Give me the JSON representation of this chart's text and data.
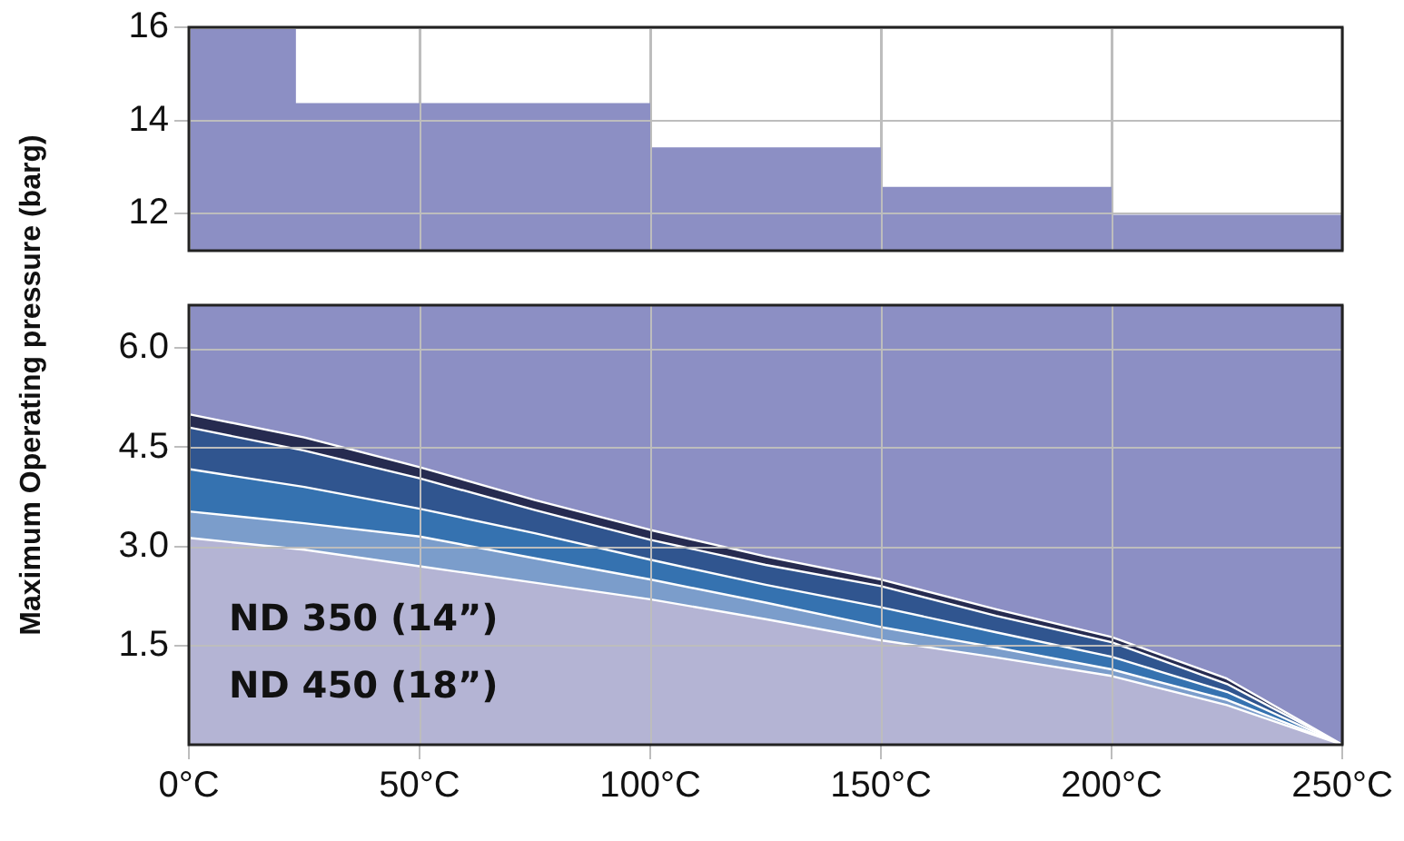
{
  "chart_data": [
    {
      "type": "area",
      "x": [
        0,
        23,
        23,
        100,
        100,
        150,
        150,
        200,
        200,
        250
      ],
      "series": [
        {
          "color": "#8c8fc4",
          "values": [
            16,
            16,
            14.35,
            14.35,
            13.4,
            13.4,
            12.55,
            12.55,
            11.95,
            11.95
          ]
        }
      ],
      "xlim": [
        0,
        250
      ],
      "xticks": [
        0,
        50,
        100,
        150,
        200,
        250
      ],
      "ylim": [
        11.2,
        16
      ],
      "yticks": [
        12,
        14,
        16
      ],
      "grid": true,
      "tick_labels": "y"
    },
    {
      "type": "area",
      "x": [
        0,
        25,
        50,
        75,
        100,
        125,
        150,
        175,
        200,
        225,
        250
      ],
      "series": [
        {
          "color": "#262b50",
          "values": [
            5.0,
            4.65,
            4.2,
            3.7,
            3.25,
            2.85,
            2.5,
            2.05,
            1.63,
            1.0,
            0
          ]
        },
        {
          "color": "#30558f",
          "values": [
            4.8,
            4.45,
            4.03,
            3.55,
            3.1,
            2.72,
            2.4,
            1.95,
            1.55,
            0.92,
            0
          ]
        },
        {
          "color": "#3572b0",
          "values": [
            4.17,
            3.9,
            3.57,
            3.2,
            2.8,
            2.42,
            2.08,
            1.7,
            1.33,
            0.8,
            0
          ]
        },
        {
          "color": "#7b9dcb",
          "values": [
            3.53,
            3.35,
            3.15,
            2.82,
            2.5,
            2.15,
            1.78,
            1.47,
            1.14,
            0.68,
            0
          ]
        },
        {
          "color": "#b4b4d4",
          "values": [
            3.13,
            2.95,
            2.7,
            2.45,
            2.2,
            1.9,
            1.58,
            1.32,
            1.04,
            0.6,
            0
          ]
        }
      ],
      "xlim": [
        0,
        250
      ],
      "xticks": [
        {
          "value": 0,
          "label": "0°C"
        },
        {
          "value": 50,
          "label": "50°C"
        },
        {
          "value": 100,
          "label": "100°C"
        },
        {
          "value": 150,
          "label": "150°C"
        },
        {
          "value": 200,
          "label": "200°C"
        },
        {
          "value": 250,
          "label": "250°C"
        }
      ],
      "ylim": [
        0,
        6.65
      ],
      "yticks": [
        1.5,
        {
          "value": 3,
          "label": "3.0"
        },
        4.5,
        {
          "value": 6,
          "label": "6.0"
        }
      ],
      "grid": true,
      "ylabel": "Maximum Operating pressure (barg)",
      "annotations": [
        "ND 350 (14”)",
        "ND 450 (18”)"
      ]
    }
  ]
}
